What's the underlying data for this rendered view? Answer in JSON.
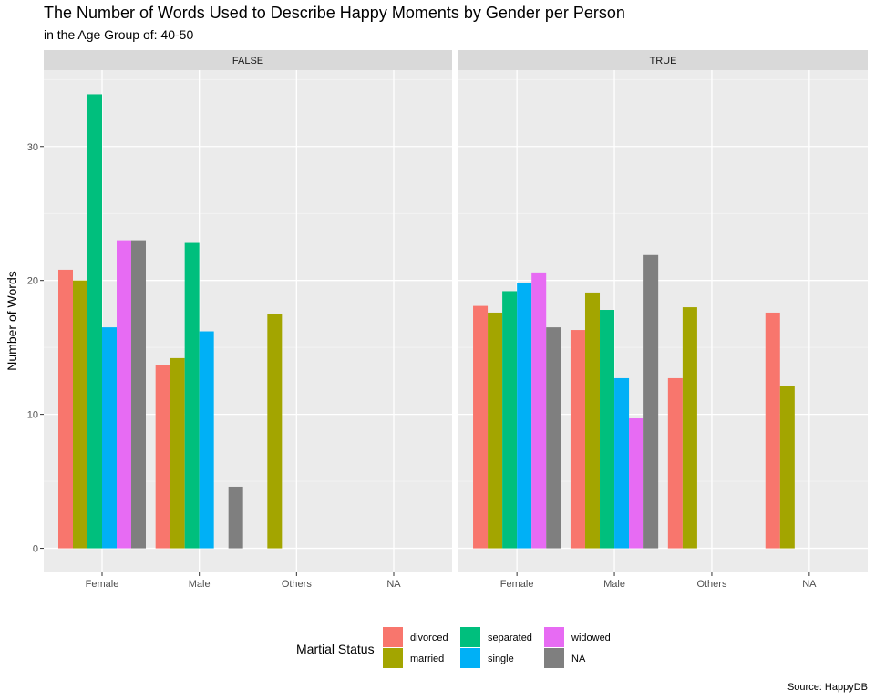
{
  "chart_data": {
    "type": "bar",
    "title": "The Number of Words Used to Describe Happy Moments by Gender per Person",
    "subtitle": "in the Age Group of: 40-50",
    "ylabel": "Number of Words",
    "xlabel": "",
    "caption": "Source: HappyDB",
    "ylim": [
      -1.8,
      35.7
    ],
    "yticks": [
      0,
      10,
      20,
      30
    ],
    "grid": true,
    "legend_position": "bottom",
    "legend_title": "Martial Status",
    "categories": [
      "Female",
      "Male",
      "Others",
      "NA"
    ],
    "series": [
      {
        "name": "divorced",
        "color": "#F8766D"
      },
      {
        "name": "married",
        "color": "#A3A500"
      },
      {
        "name": "separated",
        "color": "#00BF7D"
      },
      {
        "name": "single",
        "color": "#00B0F6"
      },
      {
        "name": "widowed",
        "color": "#E76BF3"
      },
      {
        "name": "NA",
        "color": "#7F7F7F"
      }
    ],
    "panels": [
      {
        "label": "FALSE",
        "values": {
          "divorced": [
            20.8,
            13.7,
            null,
            null
          ],
          "married": [
            20.0,
            14.2,
            17.5,
            null
          ],
          "separated": [
            33.9,
            22.8,
            null,
            null
          ],
          "single": [
            16.5,
            16.2,
            null,
            null
          ],
          "widowed": [
            23.0,
            null,
            null,
            null
          ],
          "NA": [
            23.0,
            4.6,
            null,
            null
          ]
        }
      },
      {
        "label": "TRUE",
        "values": {
          "divorced": [
            18.1,
            16.3,
            12.7,
            17.6
          ],
          "married": [
            17.6,
            19.1,
            18.0,
            12.1
          ],
          "separated": [
            19.2,
            17.8,
            null,
            null
          ],
          "single": [
            19.8,
            12.7,
            null,
            null
          ],
          "widowed": [
            20.6,
            9.7,
            null,
            null
          ],
          "NA": [
            16.5,
            21.9,
            null,
            null
          ]
        }
      }
    ]
  }
}
